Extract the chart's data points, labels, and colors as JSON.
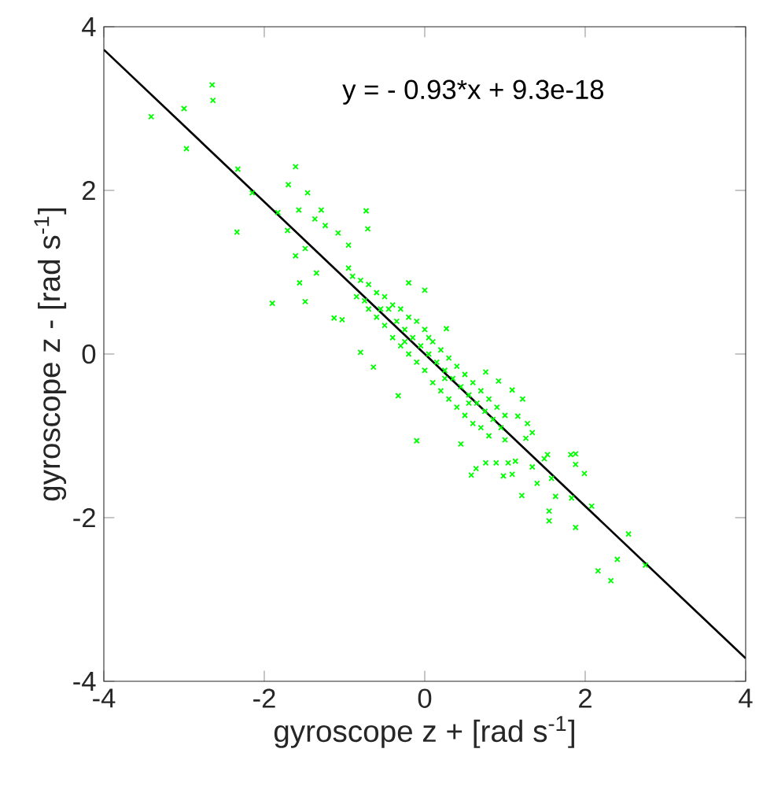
{
  "chart_data": {
    "type": "scatter",
    "xlabel": "gyroscope z + [rad s$^{-1}$]",
    "ylabel": "gyroscope z - [rad s$^{-1}$]",
    "annotations": [
      "y = - 0.93*x + 9.3e-18"
    ],
    "xlim": [
      -4,
      4
    ],
    "ylim": [
      -4,
      4
    ],
    "xticks": [
      -4,
      -2,
      0,
      2,
      4
    ],
    "yticks": [
      -4,
      -2,
      0,
      2,
      4
    ],
    "series": [
      {
        "type": "scatter",
        "color": "#00ff00",
        "marker": "cross",
        "x": [
          -3.41,
          -3.0,
          -2.65,
          -2.64,
          -2.97,
          -2.33,
          -2.15,
          -2.34,
          -1.61,
          -1.7,
          -1.46,
          -1.83,
          -1.57,
          -1.29,
          -1.71,
          -1.37,
          -1.24,
          -0.73,
          -0.71,
          -1.61,
          -1.49,
          -1.9,
          -1.56,
          -1.49,
          -1.35,
          -1.08,
          -0.95,
          -1.13,
          -1.03,
          -0.8,
          -0.64,
          0,
          -0.2,
          0.27,
          0.76,
          1.09,
          -0.33,
          -0.1,
          0.45,
          0.92,
          1.22,
          1.16,
          1.28,
          1.34,
          1.26,
          0.76,
          0.89,
          1.04,
          1.13,
          0.64,
          0.58,
          0.98,
          1.09,
          1.34,
          1.49,
          1.53,
          1.82,
          1.88,
          1.88,
          1.99,
          1.4,
          1.58,
          1.63,
          1.21,
          1.55,
          1.55,
          1.83,
          2.08,
          1.88,
          2.54,
          2.4,
          2.16,
          2.32,
          2.75,
          -0.9,
          -0.8,
          -0.85,
          -0.7,
          -0.7,
          -0.6,
          -0.6,
          -0.5,
          -0.5,
          -0.45,
          -0.4,
          -0.4,
          -0.35,
          -0.3,
          -0.3,
          -0.25,
          -0.2,
          -0.2,
          -0.15,
          -0.1,
          -0.1,
          -0.05,
          0,
          0,
          0.05,
          0.1,
          0.1,
          0.15,
          0.2,
          0.2,
          0.25,
          0.3,
          0.3,
          0.35,
          0.4,
          0.4,
          0.45,
          0.5,
          0.5,
          0.55,
          0.6,
          0.6,
          0.65,
          0.7,
          0.7,
          0.75,
          0.8,
          0.8,
          0.85,
          0.9,
          0.95,
          1.0,
          1.0,
          -0.95,
          -0.75,
          0.05,
          -0.25,
          0.25,
          0.55,
          -0.55
        ],
        "values": [
          2.9,
          3.0,
          3.29,
          3.1,
          2.51,
          2.26,
          1.97,
          1.49,
          2.29,
          2.07,
          1.97,
          1.73,
          1.76,
          1.76,
          1.51,
          1.65,
          1.57,
          1.75,
          1.53,
          1.2,
          1.29,
          0.62,
          0.87,
          0.64,
          0.99,
          1.48,
          1.33,
          0.44,
          0.42,
          0.02,
          -0.16,
          0.78,
          0.87,
          0.31,
          -0.22,
          -0.44,
          -0.51,
          -1.06,
          -1.1,
          -0.33,
          -0.55,
          -0.76,
          -0.85,
          -0.96,
          -1.03,
          -1.33,
          -1.33,
          -1.33,
          -1.31,
          -1.4,
          -1.48,
          -1.49,
          -1.47,
          -1.38,
          -1.28,
          -1.23,
          -1.23,
          -1.22,
          -1.35,
          -1.46,
          -1.58,
          -1.52,
          -1.74,
          -1.73,
          -1.92,
          -2.04,
          -1.76,
          -1.86,
          -2.12,
          -2.2,
          -2.51,
          -2.65,
          -2.77,
          -2.58,
          0.95,
          0.9,
          0.7,
          0.85,
          0.55,
          0.75,
          0.45,
          0.7,
          0.35,
          0.55,
          0.6,
          0.2,
          0.4,
          0.55,
          0.1,
          0.3,
          0.45,
          0.0,
          0.2,
          0.4,
          -0.1,
          0.1,
          0.3,
          -0.2,
          0.0,
          0.15,
          -0.35,
          -0.1,
          0.05,
          -0.45,
          -0.2,
          -0.05,
          -0.55,
          -0.3,
          -0.15,
          -0.65,
          -0.4,
          -0.25,
          -0.75,
          -0.5,
          -0.35,
          -0.85,
          -0.6,
          -0.45,
          -0.9,
          -0.7,
          -0.55,
          -1.0,
          -0.8,
          -0.65,
          -0.9,
          -0.75,
          -1.05,
          1.05,
          0.65,
          0.2,
          0.15,
          -0.3,
          -0.6,
          0.55
        ]
      },
      {
        "type": "line",
        "color": "#000000",
        "x": [
          -4,
          4
        ],
        "values": [
          3.72,
          -3.72
        ]
      }
    ]
  }
}
